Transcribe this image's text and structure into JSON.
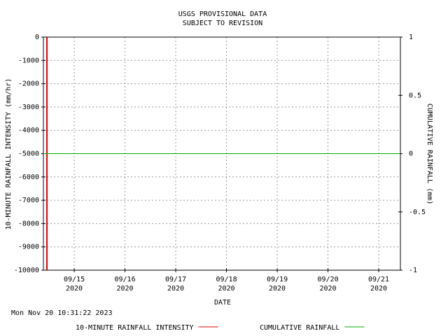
{
  "chart_data": {
    "type": "line",
    "title": "USGS PROVISIONAL DATA",
    "subtitle": "SUBJECT TO REVISION",
    "x_label": "DATE",
    "y_label": "10-MINUTE RAINFALL INTENSITY (mm/hr)",
    "y2_label": "CUMULATIVE RAINFALL (mm)",
    "timestamp": "Mon Nov 20 10:31:22 2023",
    "xlim": [
      "2020-09-14T09:25",
      "2020-09-21T10:15"
    ],
    "xticks": [
      {
        "value": "2020-09-15T00:00",
        "label": "09/15\n2020"
      },
      {
        "value": "2020-09-16T00:00",
        "label": "09/16\n2020"
      },
      {
        "value": "2020-09-17T00:00",
        "label": "09/17\n2020"
      },
      {
        "value": "2020-09-18T00:00",
        "label": "09/18\n2020"
      },
      {
        "value": "2020-09-19T00:00",
        "label": "09/19\n2020"
      },
      {
        "value": "2020-09-20T00:00",
        "label": "09/20\n2020"
      },
      {
        "value": "2020-09-21T00:00",
        "label": "09/21\n2020"
      }
    ],
    "ylim": [
      -10000,
      0
    ],
    "yticks": [
      0,
      -1000,
      -2000,
      -3000,
      -4000,
      -5000,
      -6000,
      -7000,
      -8000,
      -9000,
      -10000
    ],
    "y2lim": [
      -1,
      1
    ],
    "y2ticks": [
      1,
      0.5,
      0,
      -0.5,
      -1
    ],
    "grid": true,
    "series": [
      {
        "name": "10-MINUTE RAINFALL INTENSITY",
        "color": "#e00000",
        "x": [
          "2020-09-14T11:05",
          "2020-09-14T11:05"
        ],
        "values": [
          0,
          -10000
        ]
      },
      {
        "name": "CUMULATIVE RAINFALL",
        "color": "#00b000",
        "axis": "y2",
        "x": [
          "2020-09-14T09:25",
          "2020-09-21T10:15"
        ],
        "values": [
          0,
          0
        ]
      }
    ]
  }
}
